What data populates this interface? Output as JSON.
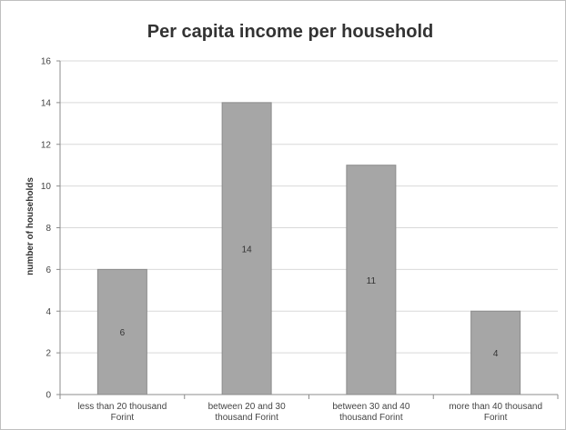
{
  "chart_data": {
    "type": "bar",
    "title": "Per capita income per household",
    "ylabel": "number of households",
    "xlabel": "",
    "ylim": [
      0,
      16
    ],
    "yticks": [
      0,
      2,
      4,
      6,
      8,
      10,
      12,
      14,
      16
    ],
    "grid": true,
    "categories": [
      [
        "less than 20 thousand",
        "Forint"
      ],
      [
        "between 20 and 30",
        "thousand Forint"
      ],
      [
        "between 30 and 40",
        "thousand Forint"
      ],
      [
        "more than 40 thousand",
        "Forint"
      ]
    ],
    "values": [
      6,
      14,
      11,
      4
    ],
    "data_labels": [
      "6",
      "14",
      "11",
      "4"
    ],
    "colors": {
      "bar": "#a6a6a6",
      "bar_stroke": "#8c8c8c",
      "grid": "#d9d9d9",
      "axis": "#8c8c8c"
    }
  }
}
